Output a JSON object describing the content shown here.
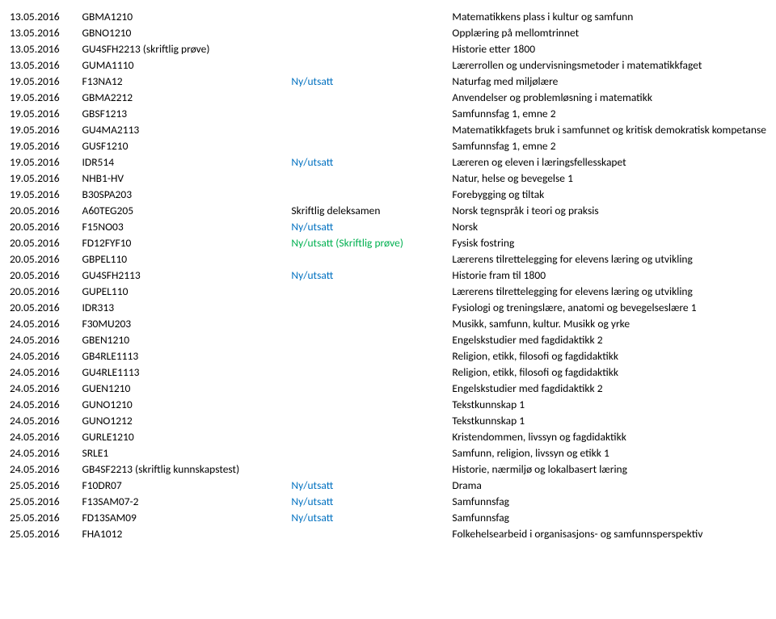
{
  "rows": [
    {
      "date": "13.05.2016",
      "code": "GBMA1210",
      "note": "",
      "noteClass": "",
      "desc": "Matematikkens plass i kultur og samfunn"
    },
    {
      "date": "13.05.2016",
      "code": "GBNO1210",
      "note": "",
      "noteClass": "",
      "desc": "Opplæring på mellomtrinnet"
    },
    {
      "date": "13.05.2016",
      "code": "GU4SFH2213 (skriftlig prøve)",
      "note": "",
      "noteClass": "",
      "desc": "Historie etter 1800"
    },
    {
      "date": "13.05.2016",
      "code": "GUMA1110",
      "note": "",
      "noteClass": "",
      "desc": "Lærerrollen og undervisningsmetoder i matematikkfaget"
    },
    {
      "date": "19.05.2016",
      "code": "F13NA12",
      "note": "Ny/utsatt",
      "noteClass": "blue",
      "desc": "Naturfag med miljølære"
    },
    {
      "date": "19.05.2016",
      "code": "GBMA2212",
      "note": "",
      "noteClass": "",
      "desc": "Anvendelser og problemløsning i matematikk"
    },
    {
      "date": "19.05.2016",
      "code": "GBSF1213",
      "note": "",
      "noteClass": "",
      "desc": "Samfunnsfag 1, emne 2"
    },
    {
      "date": "19.05.2016",
      "code": "GU4MA2113",
      "note": "",
      "noteClass": "",
      "desc": "Matematikkfagets bruk i samfunnet og kritisk demokratisk kompetanse"
    },
    {
      "date": "19.05.2016",
      "code": "GUSF1210",
      "note": "",
      "noteClass": "",
      "desc": "Samfunnsfag 1, emne 2"
    },
    {
      "date": "19.05.2016",
      "code": "IDR514",
      "note": "Ny/utsatt",
      "noteClass": "blue",
      "desc": "Læreren og eleven i læringsfellesskapet"
    },
    {
      "date": "19.05.2016",
      "code": "NHB1-HV",
      "note": "",
      "noteClass": "",
      "desc": "Natur, helse og bevegelse 1"
    },
    {
      "date": "19.05.2016",
      "code": "B30SPA203",
      "note": "",
      "noteClass": "",
      "desc": "Forebygging og tiltak"
    },
    {
      "date": "20.05.2016",
      "code": "A60TEG205",
      "note": "Skriftlig deleksamen",
      "noteClass": "",
      "desc": "Norsk tegnspråk i teori og praksis"
    },
    {
      "date": "20.05.2016",
      "code": "F15NO03",
      "note": "Ny/utsatt",
      "noteClass": "blue",
      "desc": "Norsk"
    },
    {
      "date": "20.05.2016",
      "code": "FD12FYF10",
      "note": "Ny/utsatt (Skriftlig prøve)",
      "noteClass": "green",
      "desc": "Fysisk fostring"
    },
    {
      "date": "20.05.2016",
      "code": "GBPEL110",
      "note": "",
      "noteClass": "",
      "desc": "Lærerens tilrettelegging for elevens læring og utvikling"
    },
    {
      "date": "20.05.2016",
      "code": "GU4SFH2113",
      "note": "Ny/utsatt",
      "noteClass": "blue",
      "desc": "Historie fram til 1800"
    },
    {
      "date": "20.05.2016",
      "code": "GUPEL110",
      "note": "",
      "noteClass": "",
      "desc": "Lærerens tilrettelegging for elevens læring og utvikling"
    },
    {
      "date": "20.05.2016",
      "code": "IDR313",
      "note": "",
      "noteClass": "",
      "desc": "Fysiologi og treningslære, anatomi og bevegelseslære 1"
    },
    {
      "date": "24.05.2016",
      "code": "F30MU203",
      "note": "",
      "noteClass": "",
      "desc": "Musikk, samfunn, kultur. Musikk og yrke"
    },
    {
      "date": "24.05.2016",
      "code": "GBEN1210",
      "note": "",
      "noteClass": "",
      "desc": "Engelskstudier med fagdidaktikk 2"
    },
    {
      "date": "24.05.2016",
      "code": "GB4RLE1113",
      "note": "",
      "noteClass": "",
      "desc": "Religion, etikk, filosofi og fagdidaktikk"
    },
    {
      "date": "24.05.2016",
      "code": "GU4RLE1113",
      "note": "",
      "noteClass": "",
      "desc": "Religion, etikk, filosofi og fagdidaktikk"
    },
    {
      "date": "24.05.2016",
      "code": "GUEN1210",
      "note": "",
      "noteClass": "",
      "desc": "Engelskstudier med fagdidaktikk 2"
    },
    {
      "date": "24.05.2016",
      "code": "GUNO1210",
      "note": "",
      "noteClass": "",
      "desc": "Tekstkunnskap 1"
    },
    {
      "date": "24.05.2016",
      "code": "GUNO1212",
      "note": "",
      "noteClass": "",
      "desc": "Tekstkunnskap 1"
    },
    {
      "date": "24.05.2016",
      "code": "GURLE1210",
      "note": "",
      "noteClass": "",
      "desc": "Kristendommen, livssyn og fagdidaktikk"
    },
    {
      "date": "24.05.2016",
      "code": "SRLE1",
      "note": "",
      "noteClass": "",
      "desc": "Samfunn, religion, livssyn og etikk 1"
    },
    {
      "date": "24.05.2016",
      "code": "GB4SF2213 (skriftlig kunnskapstest)",
      "note": "",
      "noteClass": "",
      "desc": "Historie, nærmiljø og lokalbasert læring"
    },
    {
      "date": "25.05.2016",
      "code": "F10DR07",
      "note": "Ny/utsatt",
      "noteClass": "blue",
      "desc": "Drama"
    },
    {
      "date": "25.05.2016",
      "code": "F13SAM07-2",
      "note": "Ny/utsatt",
      "noteClass": "blue",
      "desc": "Samfunnsfag"
    },
    {
      "date": "25.05.2016",
      "code": "FD13SAM09",
      "note": "Ny/utsatt",
      "noteClass": "blue",
      "desc": "Samfunnsfag"
    },
    {
      "date": "25.05.2016",
      "code": "FHA1012",
      "note": "",
      "noteClass": "",
      "desc": "Folkehelsearbeid i organisasjons- og samfunnsperspektiv"
    }
  ]
}
